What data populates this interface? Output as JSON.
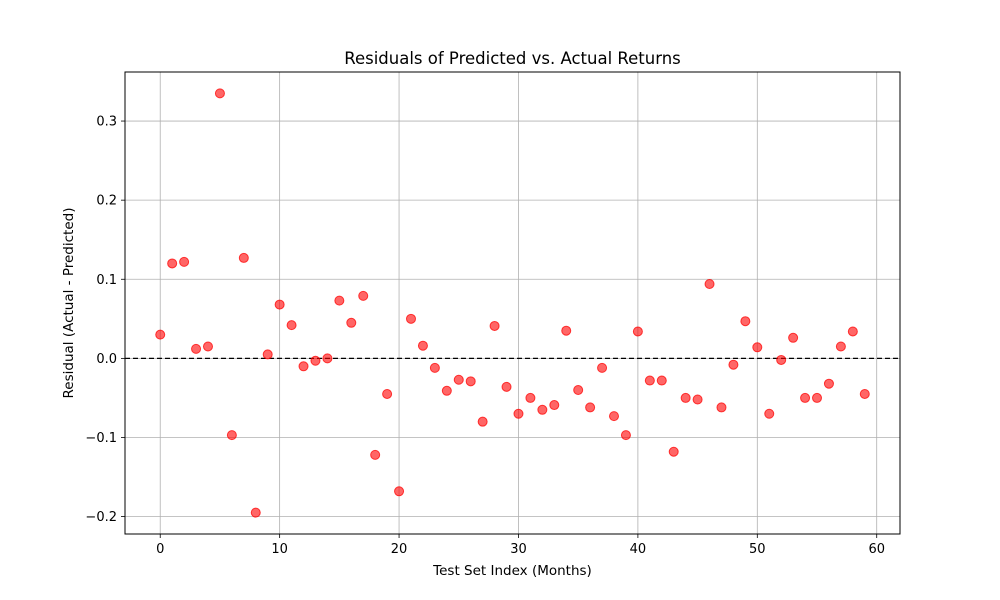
{
  "chart_data": {
    "type": "scatter",
    "title": "Residuals of Predicted vs. Actual Returns",
    "xlabel": "Test Set Index (Months)",
    "ylabel": "Residual (Actual - Predicted)",
    "xlim": [
      -2.95,
      61.95
    ],
    "ylim": [
      -0.222,
      0.362
    ],
    "xticks": [
      0,
      10,
      20,
      30,
      40,
      50,
      60
    ],
    "yticks": [
      -0.2,
      -0.1,
      0.0,
      0.1,
      0.2,
      0.3
    ],
    "xtick_labels": [
      "0",
      "10",
      "20",
      "30",
      "40",
      "50",
      "60"
    ],
    "ytick_labels": [
      "−0.2",
      "−0.1",
      "0.0",
      "0.1",
      "0.2",
      "0.3"
    ],
    "grid": true,
    "reference_line": {
      "y": 0,
      "style": "dashed",
      "color": "#000000"
    },
    "marker_color": "#ff0000",
    "marker_opacity": 0.6,
    "x": [
      0,
      1,
      2,
      3,
      4,
      5,
      6,
      7,
      8,
      9,
      10,
      11,
      12,
      13,
      14,
      15,
      16,
      17,
      18,
      19,
      20,
      21,
      22,
      23,
      24,
      25,
      26,
      27,
      28,
      29,
      30,
      31,
      32,
      33,
      34,
      35,
      36,
      37,
      38,
      39,
      40,
      41,
      42,
      43,
      44,
      45,
      46,
      47,
      48,
      49,
      50,
      51,
      52,
      53,
      54,
      55,
      56,
      57,
      58,
      59
    ],
    "y": [
      0.03,
      0.12,
      0.122,
      0.012,
      0.015,
      0.335,
      -0.097,
      0.127,
      -0.195,
      0.005,
      0.068,
      0.042,
      -0.01,
      -0.003,
      0.0,
      0.073,
      0.045,
      0.079,
      -0.122,
      -0.045,
      -0.168,
      0.05,
      0.016,
      -0.012,
      -0.041,
      -0.027,
      -0.029,
      -0.08,
      0.041,
      -0.036,
      -0.07,
      -0.05,
      -0.065,
      -0.059,
      0.035,
      -0.04,
      -0.062,
      -0.012,
      -0.073,
      -0.097,
      0.034,
      -0.028,
      -0.028,
      -0.118,
      -0.05,
      -0.052,
      0.094,
      -0.062,
      -0.008,
      0.047,
      0.014,
      -0.07,
      -0.002,
      0.026,
      -0.05,
      -0.05,
      -0.032,
      0.015,
      0.034,
      -0.045
    ]
  }
}
